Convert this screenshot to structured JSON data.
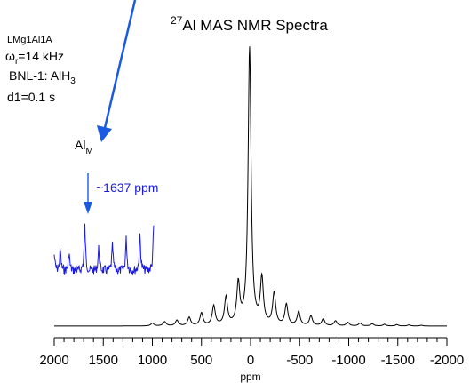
{
  "title": {
    "sup": "27",
    "main": "Al MAS NMR Spectra"
  },
  "sample": {
    "name": "LMg1Al1A",
    "spin_rate_symbol": "ω",
    "spin_rate_sub": "r",
    "spin_rate_value": "=14 kHz",
    "ref_text": "BNL-1: AlH",
    "ref_sub": "3",
    "delay": "d1=0.1 s"
  },
  "peak_label": {
    "main": "Al",
    "sub": "M"
  },
  "inset_annotation": "~1637 ppm",
  "colors": {
    "spectrum": "#000000",
    "inset": "#1a1adc",
    "arrow": "#1a5ae0",
    "axis": "#000000"
  },
  "chart_data": {
    "type": "line",
    "title": "27Al MAS NMR Spectra",
    "xlabel": "ppm",
    "ylabel": "",
    "xlim": [
      2000,
      -2000
    ],
    "x_reversed": true,
    "ticks": [
      2000,
      1500,
      1000,
      500,
      0,
      -500,
      -1000,
      -1500,
      -2000
    ],
    "tick_labels": [
      "2000",
      "1500",
      "1000",
      "500",
      "0",
      "-500",
      "-1000",
      "-1500",
      "-2000"
    ],
    "series": [
      {
        "role": "main spectrum",
        "color": "#000000",
        "peaks": [
          {
            "x": 1000,
            "y": 0.01
          },
          {
            "x": 875,
            "y": 0.015
          },
          {
            "x": 750,
            "y": 0.02
          },
          {
            "x": 625,
            "y": 0.03
          },
          {
            "x": 500,
            "y": 0.045
          },
          {
            "x": 375,
            "y": 0.07
          },
          {
            "x": 250,
            "y": 0.1
          },
          {
            "x": 125,
            "y": 0.145
          },
          {
            "x": 10,
            "y": 1.0
          },
          {
            "x": -115,
            "y": 0.165
          },
          {
            "x": -240,
            "y": 0.115
          },
          {
            "x": -365,
            "y": 0.075
          },
          {
            "x": -490,
            "y": 0.05
          },
          {
            "x": -615,
            "y": 0.035
          },
          {
            "x": -740,
            "y": 0.025
          },
          {
            "x": -865,
            "y": 0.018
          },
          {
            "x": -990,
            "y": 0.013
          },
          {
            "x": -1115,
            "y": 0.01
          },
          {
            "x": -1240,
            "y": 0.008
          },
          {
            "x": -1365,
            "y": 0.006
          },
          {
            "x": -1490,
            "y": 0.005
          },
          {
            "x": -1615,
            "y": 0.004
          },
          {
            "x": -1740,
            "y": 0.003
          }
        ]
      },
      {
        "role": "inset (Al_M region)",
        "color": "#1a1adc",
        "peaks": [
          {
            "x": 1915,
            "y": 0.35
          },
          {
            "x": 1860,
            "y": 0.45
          },
          {
            "x": 1780,
            "y": 0.4
          },
          {
            "x": 1637,
            "y": 1.0
          },
          {
            "x": 1510,
            "y": 0.5
          },
          {
            "x": 1385,
            "y": 0.55
          },
          {
            "x": 1260,
            "y": 0.7
          },
          {
            "x": 1135,
            "y": 0.8
          },
          {
            "x": 1010,
            "y": 1.0
          }
        ]
      }
    ],
    "annotations": [
      "~1637 ppm"
    ],
    "grid": false,
    "legend": "none"
  }
}
